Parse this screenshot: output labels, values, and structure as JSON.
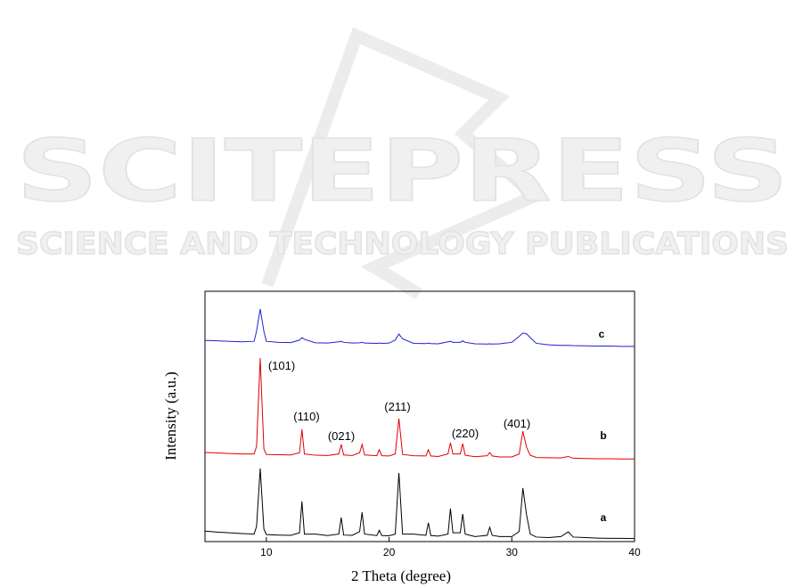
{
  "watermark": {
    "title": "SCITEPRESS",
    "subtitle": "SCIENCE AND TECHNOLOGY PUBLICATIONS"
  },
  "chart_data": {
    "type": "line",
    "x_label": "2 Theta (degree)",
    "y_label": "Intensity (a.u.)",
    "xlim": [
      5,
      40
    ],
    "xticks": [
      10,
      20,
      30,
      40
    ],
    "ylim": [
      0,
      100
    ],
    "annotations": [
      "(101)",
      "(110)",
      "(021)",
      "(211)",
      "(220)",
      "(401)"
    ],
    "x": [
      5,
      6,
      7,
      8,
      9,
      9.2,
      9.5,
      9.8,
      10,
      11,
      12,
      12.7,
      12.9,
      13.1,
      14,
      15,
      15.9,
      16.1,
      16.3,
      17,
      17.6,
      17.8,
      18,
      19,
      19.2,
      19.4,
      20,
      20.5,
      20.8,
      21.1,
      22,
      23,
      23.2,
      23.4,
      24,
      24.8,
      25,
      25.2,
      25.8,
      26,
      26.2,
      27,
      28,
      28.2,
      28.4,
      29,
      30,
      30.6,
      30.9,
      31.2,
      31.5,
      32,
      33,
      34,
      34.6,
      35,
      36,
      37,
      38,
      39,
      40
    ],
    "series": [
      {
        "name": "a",
        "color": "#000000",
        "values": [
          4.2,
          3.8,
          3.5,
          3.2,
          3.0,
          6,
          29.2,
          5,
          2.8,
          2.6,
          2.5,
          3.5,
          16,
          3,
          3,
          2.4,
          3,
          9.6,
          2.6,
          2.5,
          4,
          11.7,
          3,
          2.4,
          4.5,
          2.4,
          2.3,
          3,
          27.4,
          3,
          3,
          2.5,
          7.5,
          2.4,
          2.2,
          3,
          13.2,
          3.5,
          3.5,
          11,
          3,
          2,
          2.5,
          5.7,
          2.5,
          2,
          2,
          4,
          21.4,
          10.7,
          3,
          1.8,
          1.6,
          2,
          3.9,
          1.8,
          1.6,
          1.4,
          1.3,
          1.3,
          1.2
        ]
      },
      {
        "name": "b",
        "color": "#e00000",
        "values": [
          35.6,
          35.4,
          35.2,
          35,
          35,
          38,
          73.3,
          37,
          34.8,
          34.7,
          34.6,
          35.5,
          44.8,
          35,
          34.5,
          34.4,
          35,
          38.8,
          34.6,
          34.4,
          35.5,
          38.8,
          34.6,
          34.3,
          36.7,
          34.3,
          34.2,
          35,
          49.1,
          34.8,
          34.3,
          34.2,
          36.7,
          34.2,
          34,
          35,
          39.5,
          35,
          35,
          39.1,
          34.5,
          33.9,
          34.3,
          35.6,
          34.2,
          33.8,
          33.8,
          35,
          44.1,
          37.7,
          34.5,
          33.6,
          33.5,
          33.4,
          34,
          33.3,
          33.2,
          33.1,
          33.1,
          33,
          33
        ]
      },
      {
        "name": "c",
        "color": "#1f1fd0",
        "values": [
          80.4,
          80.2,
          80,
          79.8,
          80,
          84,
          92.9,
          84,
          80,
          79.6,
          79.5,
          80.5,
          81.5,
          80.8,
          79.4,
          79.3,
          79.8,
          80,
          79.6,
          79.3,
          79.4,
          79.6,
          79.3,
          79.2,
          79.3,
          79.2,
          79.3,
          80.5,
          82.9,
          81,
          79.2,
          79.1,
          79.3,
          79.1,
          79,
          79.8,
          80,
          79.6,
          79.6,
          80.2,
          79.6,
          79,
          78.9,
          79,
          78.9,
          79,
          79.6,
          82,
          83.3,
          83,
          81.5,
          79.2,
          78.6,
          78.4,
          78.4,
          78.3,
          78.2,
          78.1,
          78.1,
          78,
          78
        ]
      }
    ]
  }
}
